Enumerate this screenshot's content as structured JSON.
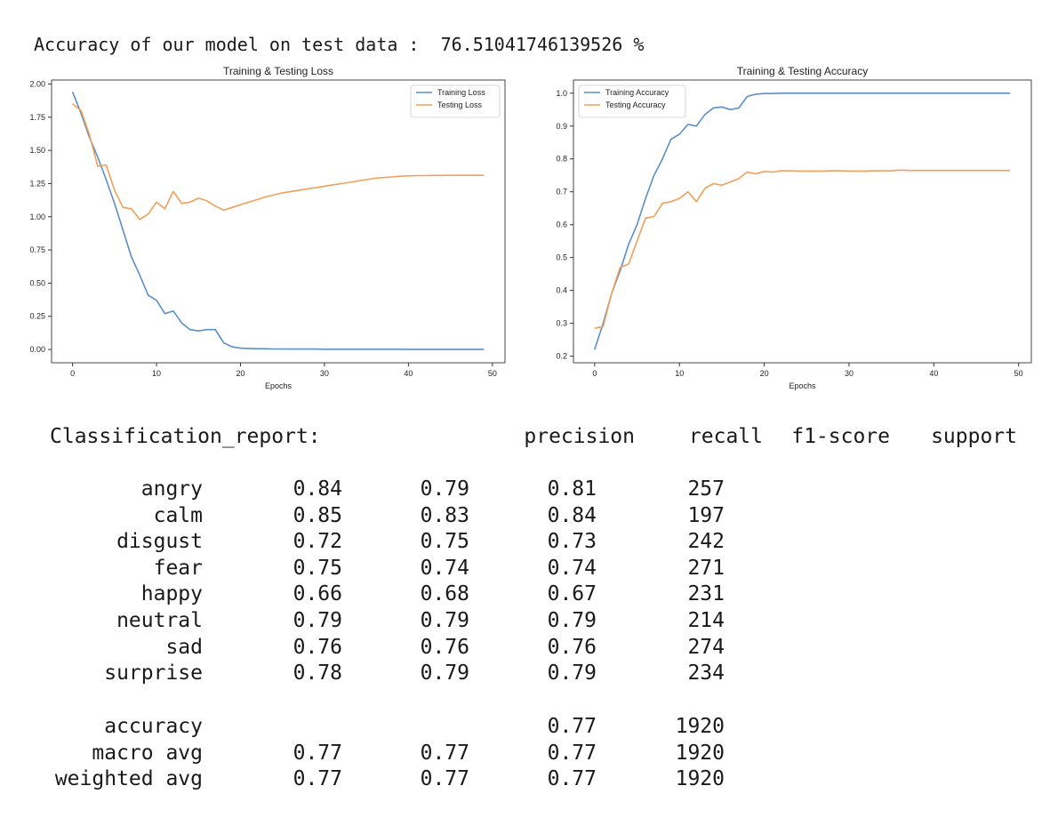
{
  "accuracy_line": {
    "label": "Accuracy of our model on test data :",
    "value": "76.51041746139526 %"
  },
  "chart_data": [
    {
      "type": "line",
      "title": "Training & Testing Loss",
      "xlabel": "Epochs",
      "ylabel": "",
      "xlim": [
        -2.5,
        51.5
      ],
      "ylim": [
        -0.1,
        2.03
      ],
      "xticks": [
        0,
        10,
        20,
        30,
        40,
        50
      ],
      "yticks": [
        0.0,
        0.25,
        0.5,
        0.75,
        1.0,
        1.25,
        1.5,
        1.75,
        2.0
      ],
      "ytick_labels": [
        "0.00",
        "0.25",
        "0.50",
        "0.75",
        "1.00",
        "1.25",
        "1.50",
        "1.75",
        "2.00"
      ],
      "legend": "top-right",
      "grid": false,
      "x": [
        0,
        1,
        2,
        3,
        4,
        5,
        6,
        7,
        8,
        9,
        10,
        11,
        12,
        13,
        14,
        15,
        16,
        17,
        18,
        19,
        20,
        21,
        22,
        23,
        24,
        25,
        26,
        27,
        28,
        29,
        30,
        31,
        32,
        33,
        34,
        35,
        36,
        37,
        38,
        39,
        40,
        41,
        42,
        43,
        44,
        45,
        46,
        47,
        48,
        49
      ],
      "series": [
        {
          "name": "Training Loss",
          "color": "#5b8fc7",
          "values": [
            1.94,
            1.78,
            1.6,
            1.45,
            1.28,
            1.1,
            0.9,
            0.7,
            0.56,
            0.41,
            0.37,
            0.27,
            0.29,
            0.2,
            0.15,
            0.14,
            0.15,
            0.15,
            0.05,
            0.02,
            0.01,
            0.008,
            0.006,
            0.005,
            0.004,
            0.004,
            0.003,
            0.003,
            0.003,
            0.003,
            0.002,
            0.002,
            0.002,
            0.002,
            0.002,
            0.002,
            0.002,
            0.002,
            0.002,
            0.002,
            0.001,
            0.001,
            0.001,
            0.001,
            0.001,
            0.001,
            0.001,
            0.001,
            0.001,
            0.001
          ]
        },
        {
          "name": "Testing Loss",
          "color": "#f0a05a",
          "values": [
            1.85,
            1.8,
            1.62,
            1.38,
            1.39,
            1.2,
            1.07,
            1.06,
            0.98,
            1.02,
            1.11,
            1.06,
            1.19,
            1.1,
            1.11,
            1.14,
            1.12,
            1.08,
            1.05,
            1.07,
            1.09,
            1.11,
            1.13,
            1.15,
            1.165,
            1.18,
            1.19,
            1.2,
            1.21,
            1.22,
            1.23,
            1.24,
            1.25,
            1.26,
            1.27,
            1.28,
            1.29,
            1.295,
            1.3,
            1.305,
            1.308,
            1.31,
            1.31,
            1.311,
            1.311,
            1.312,
            1.312,
            1.312,
            1.312,
            1.312
          ]
        }
      ]
    },
    {
      "type": "line",
      "title": "Training & Testing Accuracy",
      "xlabel": "Epochs",
      "ylabel": "",
      "xlim": [
        -2.5,
        51.5
      ],
      "ylim": [
        0.18,
        1.04
      ],
      "xticks": [
        0,
        10,
        20,
        30,
        40,
        50
      ],
      "yticks": [
        0.2,
        0.3,
        0.4,
        0.5,
        0.6,
        0.7,
        0.8,
        0.9,
        1.0
      ],
      "ytick_labels": [
        "0.2",
        "0.3",
        "0.4",
        "0.5",
        "0.6",
        "0.7",
        "0.8",
        "0.9",
        "1.0"
      ],
      "legend": "top-left",
      "grid": false,
      "x": [
        0,
        1,
        2,
        3,
        4,
        5,
        6,
        7,
        8,
        9,
        10,
        11,
        12,
        13,
        14,
        15,
        16,
        17,
        18,
        19,
        20,
        21,
        22,
        23,
        24,
        25,
        26,
        27,
        28,
        29,
        30,
        31,
        32,
        33,
        34,
        35,
        36,
        37,
        38,
        39,
        40,
        41,
        42,
        43,
        44,
        45,
        46,
        47,
        48,
        49
      ],
      "series": [
        {
          "name": "Training Accuracy",
          "color": "#5b8fc7",
          "values": [
            0.22,
            0.3,
            0.39,
            0.46,
            0.54,
            0.6,
            0.68,
            0.75,
            0.8,
            0.86,
            0.875,
            0.905,
            0.9,
            0.935,
            0.955,
            0.958,
            0.95,
            0.955,
            0.99,
            0.997,
            0.999,
            0.999,
            1.0,
            1.0,
            1.0,
            1.0,
            1.0,
            1.0,
            1.0,
            1.0,
            1.0,
            1.0,
            1.0,
            1.0,
            1.0,
            1.0,
            1.0,
            1.0,
            1.0,
            1.0,
            1.0,
            1.0,
            1.0,
            1.0,
            1.0,
            1.0,
            1.0,
            1.0,
            1.0,
            1.0
          ]
        },
        {
          "name": "Testing Accuracy",
          "color": "#f0a05a",
          "values": [
            0.285,
            0.29,
            0.39,
            0.47,
            0.48,
            0.55,
            0.62,
            0.625,
            0.665,
            0.67,
            0.68,
            0.7,
            0.67,
            0.71,
            0.725,
            0.72,
            0.73,
            0.74,
            0.76,
            0.755,
            0.762,
            0.76,
            0.764,
            0.764,
            0.763,
            0.763,
            0.763,
            0.763,
            0.764,
            0.764,
            0.763,
            0.763,
            0.763,
            0.764,
            0.764,
            0.764,
            0.766,
            0.765,
            0.765,
            0.765,
            0.765,
            0.765,
            0.765,
            0.765,
            0.765,
            0.765,
            0.765,
            0.765,
            0.765,
            0.765
          ]
        }
      ]
    }
  ],
  "report": {
    "title": "Classification_report:",
    "headers": [
      "precision",
      "recall",
      "f1-score",
      "support"
    ],
    "rows": [
      {
        "label": "angry",
        "precision": "0.84",
        "recall": "0.79",
        "f1": "0.81",
        "support": "257"
      },
      {
        "label": "calm",
        "precision": "0.85",
        "recall": "0.83",
        "f1": "0.84",
        "support": "197"
      },
      {
        "label": "disgust",
        "precision": "0.72",
        "recall": "0.75",
        "f1": "0.73",
        "support": "242"
      },
      {
        "label": "fear",
        "precision": "0.75",
        "recall": "0.74",
        "f1": "0.74",
        "support": "271"
      },
      {
        "label": "happy",
        "precision": "0.66",
        "recall": "0.68",
        "f1": "0.67",
        "support": "231"
      },
      {
        "label": "neutral",
        "precision": "0.79",
        "recall": "0.79",
        "f1": "0.79",
        "support": "214"
      },
      {
        "label": "sad",
        "precision": "0.76",
        "recall": "0.76",
        "f1": "0.76",
        "support": "274"
      },
      {
        "label": "surprise",
        "precision": "0.78",
        "recall": "0.79",
        "f1": "0.79",
        "support": "234"
      }
    ],
    "summary": [
      {
        "label": "accuracy",
        "precision": "",
        "recall": "",
        "f1": "0.77",
        "support": "1920"
      },
      {
        "label": "macro avg",
        "precision": "0.77",
        "recall": "0.77",
        "f1": "0.77",
        "support": "1920"
      },
      {
        "label": "weighted avg",
        "precision": "0.77",
        "recall": "0.77",
        "f1": "0.77",
        "support": "1920"
      }
    ]
  }
}
